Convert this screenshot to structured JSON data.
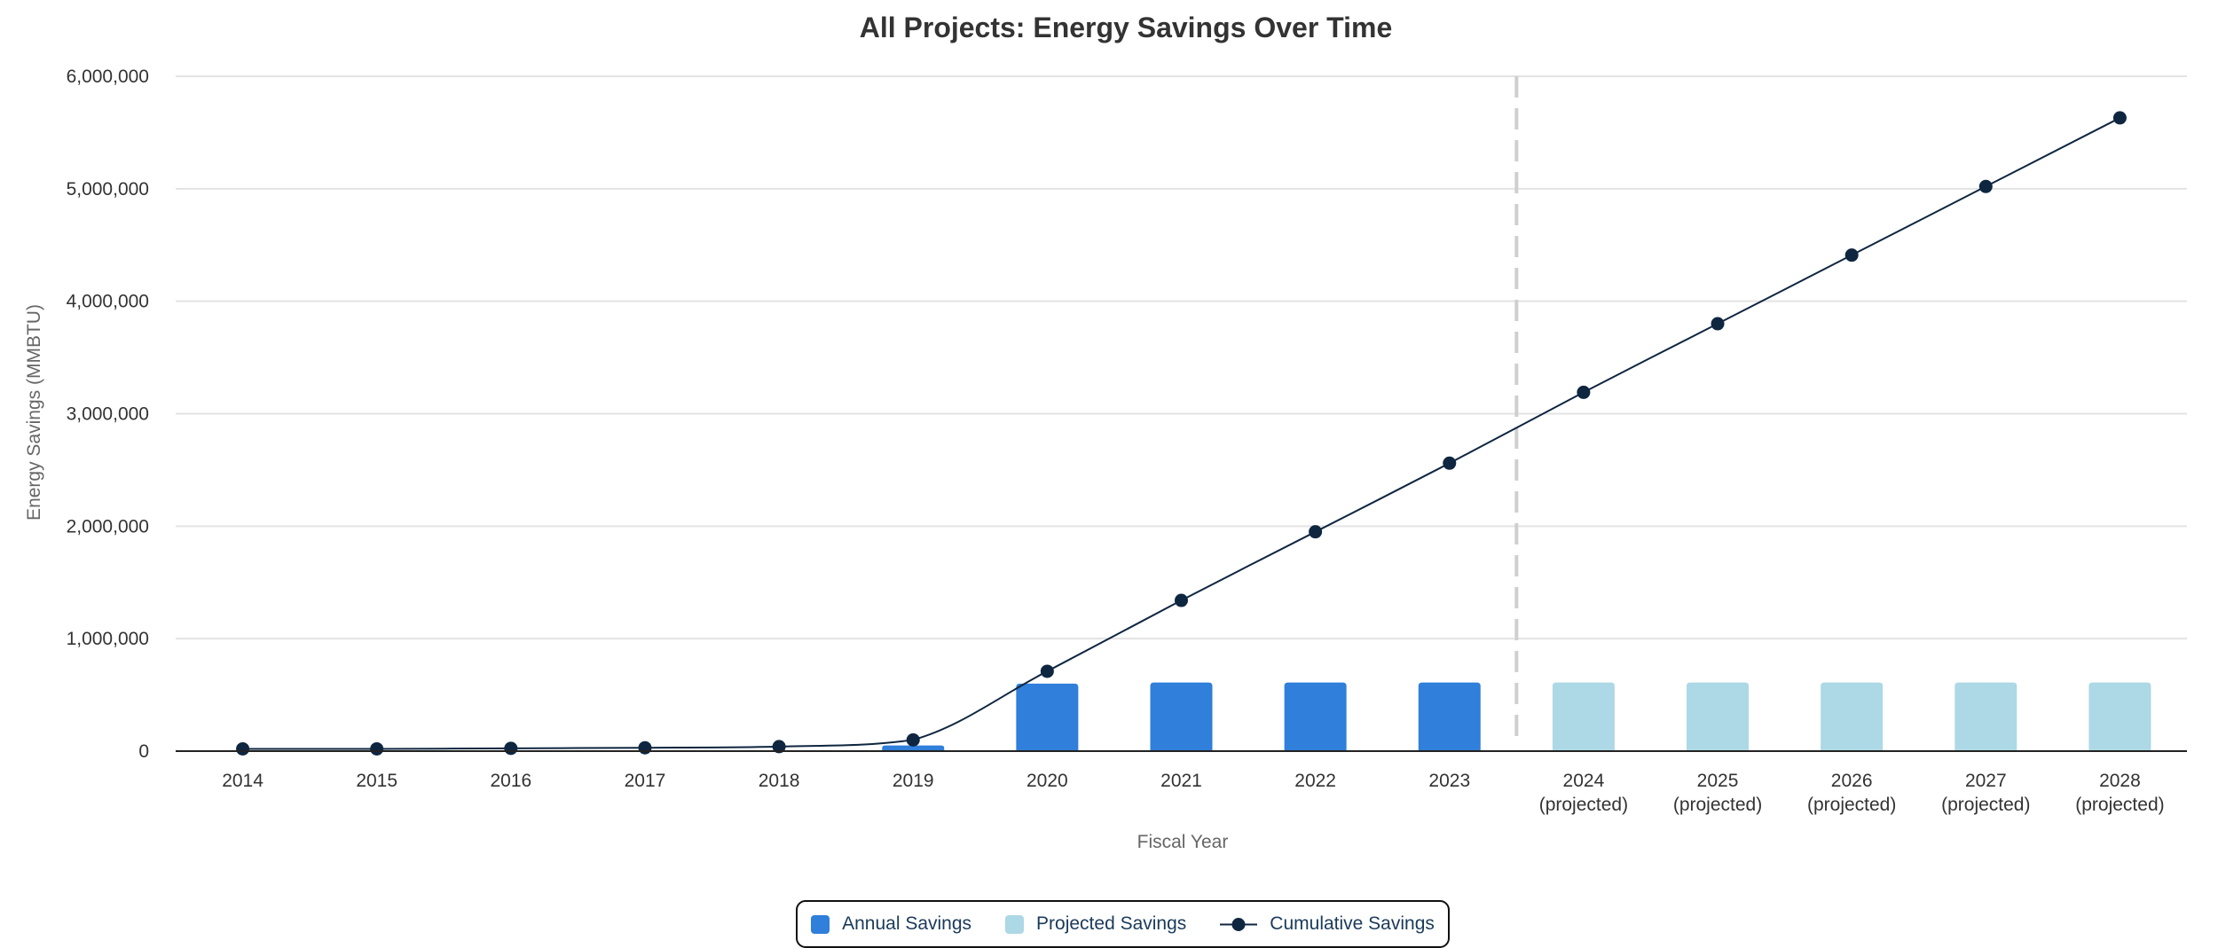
{
  "colors": {
    "annual": "#2f7fdb",
    "projected": "#add8e6",
    "cumulative": "#0f2640",
    "grid": "#e3e3e3",
    "divider": "#cfcfcf",
    "text": "#333333",
    "axis_title": "#666666"
  },
  "chart_data": {
    "type": "bar",
    "title": "All Projects: Energy Savings Over Time",
    "xlabel": "Fiscal Year",
    "ylabel": "Energy Savings (MMBTU)",
    "ylim": [
      0,
      6000000
    ],
    "yticks": [
      "0",
      "1,000,000",
      "2,000,000",
      "3,000,000",
      "4,000,000",
      "5,000,000",
      "6,000,000"
    ],
    "grid": true,
    "legend_position": "bottom-center",
    "categories": [
      {
        "year": "2014",
        "sub": ""
      },
      {
        "year": "2015",
        "sub": ""
      },
      {
        "year": "2016",
        "sub": ""
      },
      {
        "year": "2017",
        "sub": ""
      },
      {
        "year": "2018",
        "sub": ""
      },
      {
        "year": "2019",
        "sub": ""
      },
      {
        "year": "2020",
        "sub": ""
      },
      {
        "year": "2021",
        "sub": ""
      },
      {
        "year": "2022",
        "sub": ""
      },
      {
        "year": "2023",
        "sub": ""
      },
      {
        "year": "2024",
        "sub": "(projected)"
      },
      {
        "year": "2025",
        "sub": "(projected)"
      },
      {
        "year": "2026",
        "sub": "(projected)"
      },
      {
        "year": "2027",
        "sub": "(projected)"
      },
      {
        "year": "2028",
        "sub": "(projected)"
      }
    ],
    "series": [
      {
        "name": "Annual Savings",
        "type": "bar",
        "values": [
          0,
          0,
          5000,
          5000,
          5000,
          50000,
          600000,
          610000,
          610000,
          610000,
          null,
          null,
          null,
          null,
          null
        ]
      },
      {
        "name": "Projected Savings",
        "type": "bar",
        "values": [
          null,
          null,
          null,
          null,
          null,
          null,
          null,
          null,
          null,
          null,
          610000,
          610000,
          610000,
          610000,
          610000
        ]
      },
      {
        "name": "Cumulative Savings",
        "type": "line",
        "values": [
          20000,
          20000,
          25000,
          30000,
          40000,
          100000,
          710000,
          1340000,
          1950000,
          2560000,
          3190000,
          3800000,
          4410000,
          5020000,
          5630000
        ]
      }
    ],
    "projection_start_index": 10
  }
}
